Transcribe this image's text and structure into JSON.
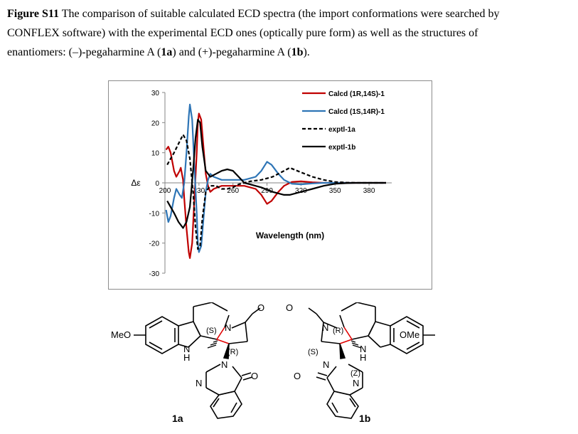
{
  "caption": {
    "label": "Figure S11",
    "line1": " The comparison of suitable calculated ECD spectra (the import conformations were searched by",
    "line2": "CONFLEX software) with the experimental ECD ones (optically pure form) as well as the structures of",
    "line3_pre": "enantiomers: (–)-pegaharmine A (",
    "c1": "1a",
    "line3_mid": ") and (+)-pegaharmine A (",
    "c2": "1b",
    "line3_end": ")."
  },
  "chart_data": {
    "type": "line",
    "xlabel": "Wavelength (nm)",
    "ylabel": "Δε",
    "xlim": [
      200,
      400
    ],
    "ylim": [
      -30,
      30
    ],
    "xticks": [
      "200",
      "230",
      "260",
      "290",
      "320",
      "350",
      "380"
    ],
    "yticks": [
      "30",
      "20",
      "10",
      "0",
      "-10",
      "-20",
      "-30"
    ],
    "grid": false,
    "legend_position": "top-right",
    "series": [
      {
        "name": "Calcd (1R,14S)-1",
        "color": "#c00000",
        "style": "solid",
        "points": [
          [
            201,
            11
          ],
          [
            203,
            12
          ],
          [
            205,
            10
          ],
          [
            208,
            4
          ],
          [
            210,
            2
          ],
          [
            213,
            4
          ],
          [
            214,
            5
          ],
          [
            216,
            1
          ],
          [
            217,
            -5
          ],
          [
            219,
            -15
          ],
          [
            221,
            -23
          ],
          [
            222,
            -25
          ],
          [
            224,
            -20
          ],
          [
            226,
            -5
          ],
          [
            228,
            10
          ],
          [
            229,
            20
          ],
          [
            230,
            23
          ],
          [
            232,
            21
          ],
          [
            234,
            12
          ],
          [
            236,
            3
          ],
          [
            238,
            -1
          ],
          [
            240,
            -3
          ],
          [
            243,
            -2
          ],
          [
            250,
            -1
          ],
          [
            260,
            -1
          ],
          [
            270,
            -1
          ],
          [
            280,
            -2
          ],
          [
            285,
            -4
          ],
          [
            290,
            -7
          ],
          [
            294,
            -6
          ],
          [
            300,
            -3
          ],
          [
            305,
            -1
          ],
          [
            312,
            0.3
          ],
          [
            320,
            0.5
          ],
          [
            330,
            0.2
          ],
          [
            340,
            0
          ],
          [
            350,
            0
          ],
          [
            395,
            0
          ]
        ]
      },
      {
        "name": "Calcd (1S,14R)-1",
        "color": "#2e75b6",
        "style": "solid",
        "points": [
          [
            201,
            -9
          ],
          [
            203,
            -13
          ],
          [
            205,
            -11
          ],
          [
            208,
            -5
          ],
          [
            210,
            -2
          ],
          [
            213,
            -4
          ],
          [
            215,
            -5
          ],
          [
            217,
            0
          ],
          [
            219,
            10
          ],
          [
            221,
            22
          ],
          [
            222,
            26
          ],
          [
            224,
            21
          ],
          [
            226,
            5
          ],
          [
            228,
            -10
          ],
          [
            229,
            -20
          ],
          [
            230,
            -23
          ],
          [
            232,
            -21
          ],
          [
            234,
            -12
          ],
          [
            236,
            -3
          ],
          [
            238,
            1
          ],
          [
            240,
            3
          ],
          [
            243,
            2
          ],
          [
            250,
            1
          ],
          [
            260,
            1
          ],
          [
            270,
            1
          ],
          [
            280,
            2
          ],
          [
            285,
            4
          ],
          [
            290,
            7
          ],
          [
            294,
            6
          ],
          [
            300,
            3
          ],
          [
            305,
            1
          ],
          [
            312,
            -0.3
          ],
          [
            320,
            -0.5
          ],
          [
            330,
            -0.2
          ],
          [
            340,
            0
          ],
          [
            350,
            0
          ],
          [
            395,
            0
          ]
        ]
      },
      {
        "name": "exptl-1a",
        "color": "#000000",
        "style": "dashed",
        "points": [
          [
            202,
            6
          ],
          [
            205,
            8
          ],
          [
            208,
            10
          ],
          [
            212,
            13
          ],
          [
            216,
            16
          ],
          [
            219,
            14
          ],
          [
            222,
            8
          ],
          [
            225,
            -4
          ],
          [
            227,
            -15
          ],
          [
            229,
            -22
          ],
          [
            231,
            -21
          ],
          [
            233,
            -12
          ],
          [
            236,
            -3
          ],
          [
            240,
            -1
          ],
          [
            245,
            -1
          ],
          [
            250,
            -2
          ],
          [
            255,
            -2
          ],
          [
            260,
            -1.5
          ],
          [
            265,
            -0.5
          ],
          [
            270,
            0
          ],
          [
            275,
            0.5
          ],
          [
            285,
            1
          ],
          [
            295,
            2
          ],
          [
            305,
            4
          ],
          [
            310,
            5
          ],
          [
            320,
            3.5
          ],
          [
            330,
            2
          ],
          [
            340,
            1
          ],
          [
            350,
            0.3
          ],
          [
            360,
            0.1
          ],
          [
            370,
            0
          ],
          [
            395,
            0
          ]
        ]
      },
      {
        "name": "exptl-1b",
        "color": "#000000",
        "style": "solid",
        "points": [
          [
            202,
            -6
          ],
          [
            205,
            -8
          ],
          [
            208,
            -10
          ],
          [
            212,
            -13
          ],
          [
            216,
            -15
          ],
          [
            219,
            -13
          ],
          [
            222,
            -8
          ],
          [
            225,
            5
          ],
          [
            227,
            15
          ],
          [
            229,
            21
          ],
          [
            231,
            20
          ],
          [
            233,
            12
          ],
          [
            236,
            4
          ],
          [
            240,
            2
          ],
          [
            245,
            3
          ],
          [
            250,
            4
          ],
          [
            255,
            4.5
          ],
          [
            260,
            4
          ],
          [
            265,
            2
          ],
          [
            270,
            0
          ],
          [
            275,
            -0.5
          ],
          [
            285,
            -1.5
          ],
          [
            295,
            -3
          ],
          [
            305,
            -4
          ],
          [
            310,
            -4
          ],
          [
            320,
            -3
          ],
          [
            330,
            -2
          ],
          [
            340,
            -1
          ],
          [
            350,
            -0.3
          ],
          [
            360,
            -0.1
          ],
          [
            370,
            0
          ],
          [
            395,
            0
          ]
        ]
      }
    ]
  },
  "structures": {
    "left_id": "1a",
    "right_id": "1b",
    "left": {
      "meo": "MeO",
      "nh_n": "N",
      "nh_h": "H",
      "n_lactam": "N",
      "o": "O",
      "s": "(S)",
      "r": "(R)",
      "n_quin": "N",
      "n_quin2": "N",
      "o2": "O"
    },
    "right": {
      "ome": "OMe",
      "nh_n": "N",
      "nh_h": "H",
      "n_lactam": "N",
      "o": "O",
      "r": "(R)",
      "s": "(S)",
      "z": "(Z)",
      "n_quin": "N",
      "n_quin2": "N",
      "o2": "O"
    }
  }
}
